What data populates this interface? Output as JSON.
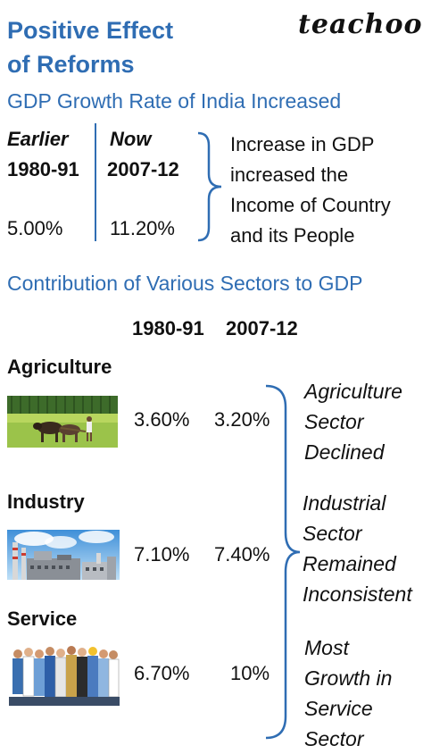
{
  "header": {
    "title_line1": "Positive Effect",
    "title_line2": "of Reforms",
    "brand": "teachoo"
  },
  "gdp_growth": {
    "heading": "GDP Growth Rate of India Increased",
    "earlier_label": "Earlier",
    "earlier_period": "1980-91",
    "earlier_value": "5.00%",
    "now_label": "Now",
    "now_period": "2007-12",
    "now_value": "11.20%",
    "note_lines": [
      "Increase in GDP",
      "increased the",
      "Income of Country",
      "and its People"
    ]
  },
  "contribution": {
    "heading": "Contribution of Various Sectors to GDP",
    "col1": "1980-91",
    "col2": "2007-12",
    "sectors": [
      {
        "name": "Agriculture",
        "v1": "3.60%",
        "v2": "3.20%",
        "image": "farmer-with-oxen-icon"
      },
      {
        "name": "Industry",
        "v1": "7.10%",
        "v2": "7.40%",
        "image": "factory-icon"
      },
      {
        "name": "Service",
        "v1": "6.70%",
        "v2": "10%",
        "image": "workers-group-icon"
      }
    ],
    "notes": [
      [
        "Agriculture",
        "Sector",
        "Declined"
      ],
      [
        "Industrial",
        "Sector",
        "Remained",
        "Inconsistent"
      ],
      [
        "Most",
        "Growth in",
        "Service",
        "Sector"
      ]
    ]
  },
  "colors": {
    "accent": "#2f6db3",
    "text": "#111111"
  }
}
